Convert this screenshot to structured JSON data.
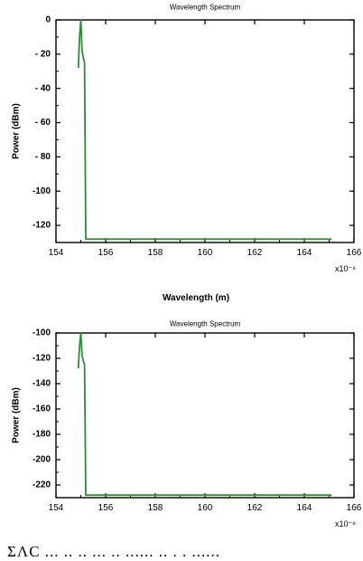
{
  "chart_data": [
    {
      "type": "line",
      "title": "Wavelength Spectrum",
      "xlabel": "Wavelength (m)",
      "ylabel": "Power (dBm)",
      "x_exponent_label": "x10⁻⁸",
      "xlim": [
        154,
        166
      ],
      "ylim": [
        -130,
        0
      ],
      "xticks": [
        154,
        156,
        158,
        160,
        162,
        164,
        166
      ],
      "xtick_labels": [
        "154",
        "156",
        "158",
        "160",
        "162",
        "164",
        "166"
      ],
      "yticks": [
        0,
        -20,
        -40,
        -60,
        -80,
        -100,
        -120
      ],
      "ytick_labels": [
        "0",
        "- 20",
        "- 40",
        "- 60",
        "- 80",
        "-100",
        "-120"
      ],
      "grid": false,
      "series": [
        {
          "color": "#2e8b3a",
          "x": [
            154.9,
            154.95,
            155.0,
            155.05,
            155.1,
            155.15,
            155.2,
            155.25,
            165.1
          ],
          "y": [
            -28,
            -10,
            0,
            -18,
            -22,
            -25,
            -128,
            -128,
            -128
          ]
        }
      ]
    },
    {
      "type": "line",
      "title": "Wavelength Spectrum",
      "xlabel": "",
      "ylabel": "Power (dBm)",
      "x_exponent_label": "x10⁻⁸",
      "xlim": [
        154,
        166
      ],
      "ylim": [
        -230,
        -100
      ],
      "xticks": [
        154,
        156,
        158,
        160,
        162,
        164,
        166
      ],
      "xtick_labels": [
        "154",
        "156",
        "158",
        "160",
        "162",
        "164",
        "166"
      ],
      "yticks": [
        -100,
        -120,
        -140,
        -160,
        -180,
        -200,
        -220
      ],
      "ytick_labels": [
        "-100",
        "-120",
        "-140",
        "-160",
        "-180",
        "-200",
        "-220"
      ],
      "grid": false,
      "series": [
        {
          "color": "#2e8b3a",
          "x": [
            154.9,
            154.95,
            155.0,
            155.05,
            155.1,
            155.15,
            155.2,
            155.25,
            165.1
          ],
          "y": [
            -128,
            -110,
            -100,
            -118,
            -122,
            -125,
            -228,
            -228,
            -228
          ]
        }
      ]
    }
  ],
  "caption": "ΣΛC  ...  .. ..  ...  ..  ......  ..  .  .  ......"
}
